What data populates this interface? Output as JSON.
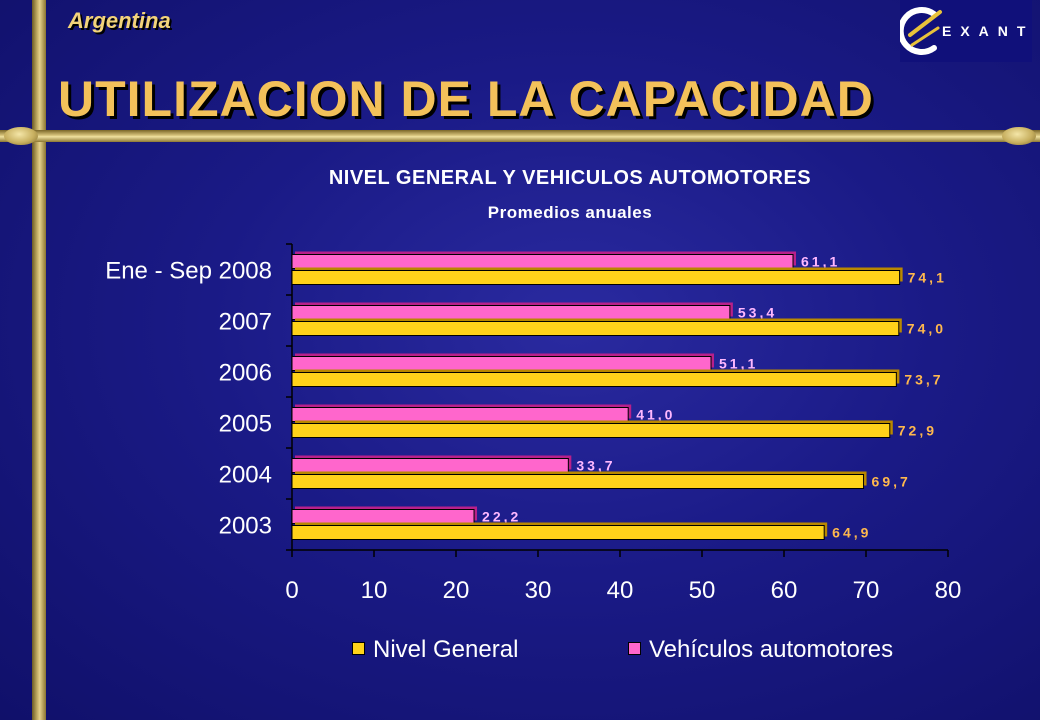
{
  "header": {
    "country": "Argentina",
    "title": "UTILIZACION DE LA CAPACIDAD",
    "logo_text": "EXANTE"
  },
  "colors": {
    "nivel_general": "#ffd21a",
    "vehiculos": "#ff66cc",
    "nivel_label": "#ffb84d",
    "vehiculos_label": "#ffb8ff"
  },
  "chart_data": {
    "type": "bar",
    "orientation": "horizontal",
    "title": "NIVEL GENERAL Y VEHICULOS AUTOMOTORES",
    "subtitle": "Promedios anuales",
    "categories": [
      "Ene - Sep 2008",
      "2007",
      "2006",
      "2005",
      "2004",
      "2003"
    ],
    "series": [
      {
        "name": "Vehículos automotores",
        "values": [
          61.1,
          53.4,
          51.1,
          41.0,
          33.7,
          22.2
        ],
        "labels": [
          "61,1",
          "53,4",
          "51,1",
          "41,0",
          "33,7",
          "22,2"
        ]
      },
      {
        "name": "Nivel General",
        "values": [
          74.1,
          74.0,
          73.7,
          72.9,
          69.7,
          64.9
        ],
        "labels": [
          "74,1",
          "74,0",
          "73,7",
          "72,9",
          "69,7",
          "64,9"
        ]
      }
    ],
    "xlim": [
      0,
      80
    ],
    "xticks": [
      "0",
      "10",
      "20",
      "30",
      "40",
      "50",
      "60",
      "70",
      "80"
    ],
    "legend_order": [
      "Nivel General",
      "Vehículos automotores"
    ],
    "legend_position": "bottom",
    "grid": false
  }
}
